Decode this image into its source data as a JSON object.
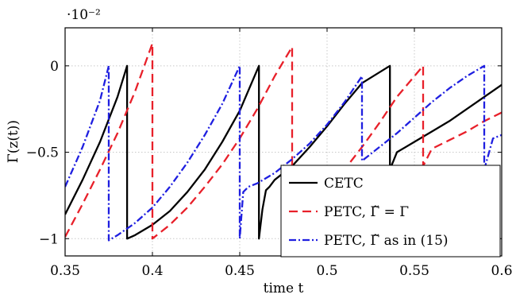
{
  "chart_data": {
    "type": "line",
    "xlabel": "time t",
    "ylabel": "Γ(z(t))",
    "multiplier": "·10⁻²",
    "xlim": [
      0.35,
      0.6
    ],
    "ylim": [
      -1.1,
      0.22
    ],
    "xticks": [
      0.35,
      0.4,
      0.45,
      0.5,
      0.55,
      0.6
    ],
    "xtick_labels": [
      "0.35",
      "0.4",
      "0.45",
      "0.5",
      "0.55",
      "0.6"
    ],
    "yticks": [
      0,
      -0.5,
      -1
    ],
    "ytick_labels": [
      "0",
      "−0.5",
      "−1"
    ],
    "grid": true,
    "legend_position": "bottom-right",
    "series": [
      {
        "name": "CETC",
        "color": "#000000",
        "style": "solid",
        "x": [
          0.35,
          0.36,
          0.37,
          0.38,
          0.3855,
          0.3855,
          0.39,
          0.4,
          0.41,
          0.42,
          0.43,
          0.44,
          0.45,
          0.461,
          0.461,
          0.463,
          0.465,
          0.467,
          0.47,
          0.48,
          0.49,
          0.5,
          0.51,
          0.52,
          0.536,
          0.536,
          0.54,
          0.55,
          0.56,
          0.57,
          0.58,
          0.59,
          0.6
        ],
        "y": [
          -0.86,
          -0.66,
          -0.44,
          -0.18,
          0.0,
          -1.0,
          -0.98,
          -0.92,
          -0.84,
          -0.73,
          -0.6,
          -0.44,
          -0.26,
          0.0,
          -1.0,
          -0.83,
          -0.72,
          -0.7,
          -0.66,
          -0.58,
          -0.47,
          -0.35,
          -0.22,
          -0.1,
          0.0,
          -0.6,
          -0.5,
          -0.44,
          -0.38,
          -0.32,
          -0.25,
          -0.18,
          -0.11
        ]
      },
      {
        "name": "PETC, Γ̃ = Γ",
        "color": "#e8202a",
        "style": "dashed",
        "x": [
          0.35,
          0.36,
          0.37,
          0.38,
          0.39,
          0.4,
          0.4,
          0.41,
          0.42,
          0.43,
          0.44,
          0.45,
          0.46,
          0.47,
          0.48,
          0.48,
          0.49,
          0.5,
          0.51,
          0.52,
          0.53,
          0.54,
          0.555,
          0.555,
          0.56,
          0.57,
          0.58,
          0.59,
          0.6
        ],
        "y": [
          -0.99,
          -0.8,
          -0.6,
          -0.39,
          -0.15,
          0.13,
          -1.0,
          -0.92,
          -0.82,
          -0.7,
          -0.57,
          -0.42,
          -0.25,
          -0.06,
          0.11,
          -0.9,
          -0.82,
          -0.72,
          -0.6,
          -0.47,
          -0.33,
          -0.18,
          0.0,
          -0.58,
          -0.48,
          -0.43,
          -0.38,
          -0.32,
          -0.27
        ]
      },
      {
        "name": "PETC, Γ̃ as in (15)",
        "color": "#1f1fe0",
        "style": "dashdot",
        "x": [
          0.35,
          0.36,
          0.37,
          0.375,
          0.375,
          0.38,
          0.39,
          0.4,
          0.41,
          0.42,
          0.43,
          0.44,
          0.45,
          0.45,
          0.452,
          0.455,
          0.46,
          0.47,
          0.48,
          0.49,
          0.5,
          0.51,
          0.52,
          0.52,
          0.53,
          0.54,
          0.55,
          0.56,
          0.57,
          0.58,
          0.59,
          0.59,
          0.595,
          0.6
        ],
        "y": [
          -0.7,
          -0.47,
          -0.2,
          0.0,
          -1.01,
          -0.98,
          -0.91,
          -0.82,
          -0.7,
          -0.56,
          -0.4,
          -0.22,
          0.0,
          -1.0,
          -0.73,
          -0.7,
          -0.68,
          -0.62,
          -0.54,
          -0.45,
          -0.34,
          -0.21,
          -0.06,
          -0.55,
          -0.47,
          -0.39,
          -0.3,
          -0.21,
          -0.13,
          -0.06,
          0.0,
          -0.6,
          -0.42,
          -0.4
        ]
      }
    ]
  }
}
